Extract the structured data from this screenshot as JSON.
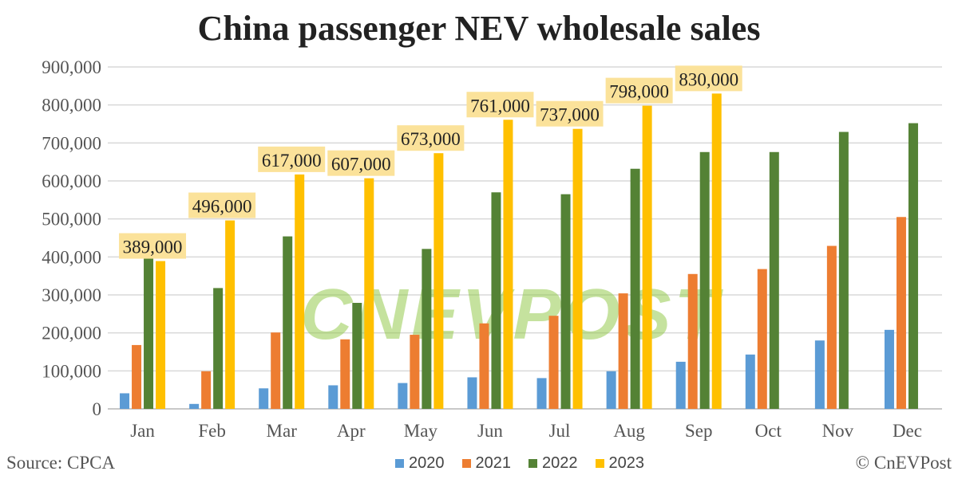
{
  "chart_data": {
    "type": "bar",
    "title": "China passenger NEV wholesale sales",
    "categories": [
      "Jan",
      "Feb",
      "Mar",
      "Apr",
      "May",
      "Jun",
      "Jul",
      "Aug",
      "Sep",
      "Oct",
      "Nov",
      "Dec"
    ],
    "ylim": [
      0,
      900000
    ],
    "yticks": [
      "0",
      "100,000",
      "200,000",
      "300,000",
      "400,000",
      "500,000",
      "600,000",
      "700,000",
      "800,000",
      "900,000"
    ],
    "grid": true,
    "legend_position": "bottom",
    "series": [
      {
        "name": "2020",
        "color": "#5b9bd5",
        "values": [
          41000,
          13000,
          54000,
          62000,
          68000,
          83000,
          81000,
          99000,
          124000,
          143000,
          180000,
          208000
        ]
      },
      {
        "name": "2021",
        "color": "#ed7d31",
        "values": [
          168000,
          99000,
          201000,
          183000,
          195000,
          225000,
          245000,
          304000,
          355000,
          368000,
          429000,
          505000
        ]
      },
      {
        "name": "2022",
        "color": "#548235",
        "values": [
          406000,
          318000,
          454000,
          279000,
          421000,
          570000,
          565000,
          632000,
          676000,
          676000,
          729000,
          752000
        ]
      },
      {
        "name": "2023",
        "color": "#ffc000",
        "values": [
          389000,
          496000,
          617000,
          607000,
          673000,
          761000,
          737000,
          798000,
          830000,
          null,
          null,
          null
        ],
        "data_labels": [
          "389,000",
          "496,000",
          "617,000",
          "607,000",
          "673,000",
          "761,000",
          "737,000",
          "798,000",
          "830,000"
        ]
      }
    ]
  },
  "source": "Source: CPCA",
  "copyright": "© CnEVPost",
  "watermark": "CnEVPost"
}
